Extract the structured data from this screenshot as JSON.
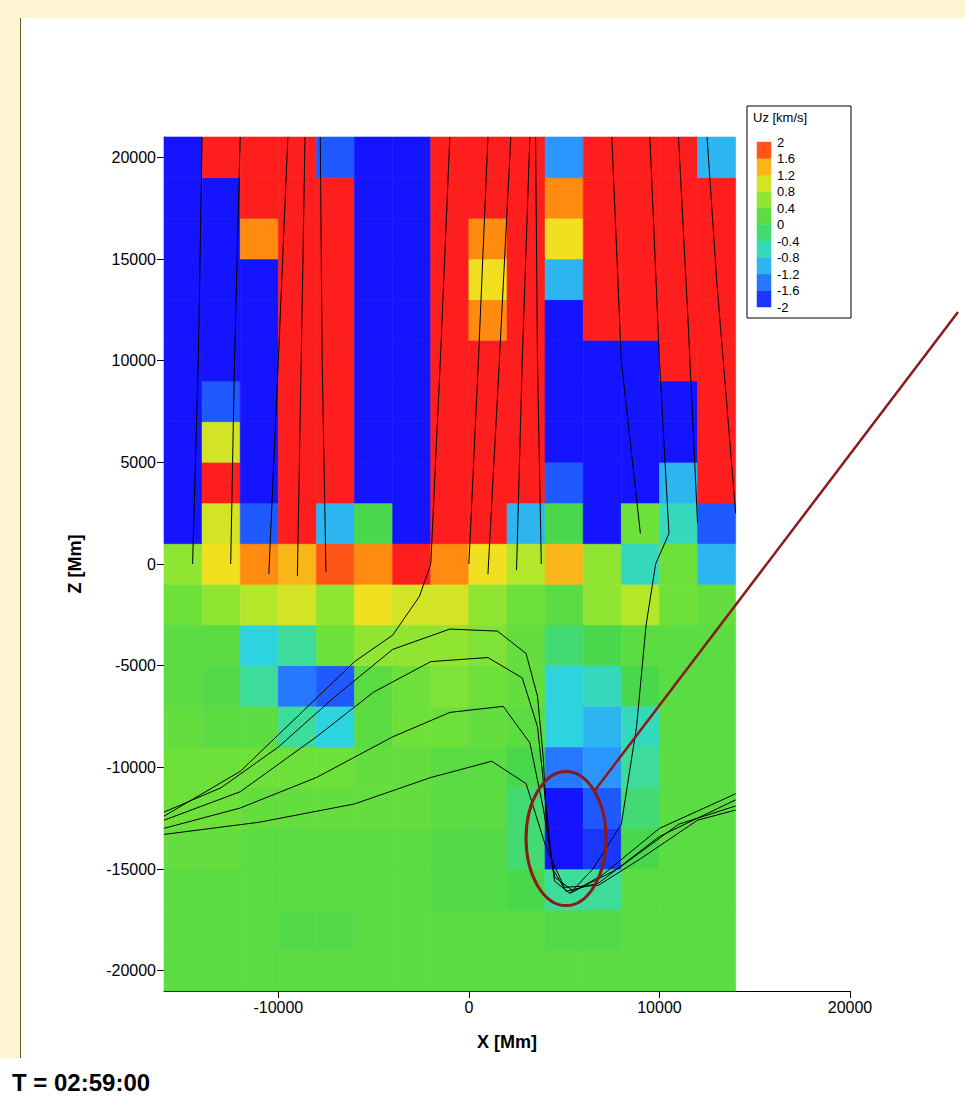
{
  "chart_data": {
    "type": "contour",
    "annotation": "T = 02:59:00",
    "x_label": "X [Mm]",
    "y_label": "Z [Mm]",
    "xlim": [
      -16000,
      20000
    ],
    "xticks": [
      -10000,
      0,
      10000,
      20000
    ],
    "ylim": [
      -21000,
      21000
    ],
    "yticks": [
      -20000,
      -15000,
      -10000,
      -5000,
      0,
      5000,
      10000,
      15000,
      20000
    ],
    "field": {
      "x_edges": [
        -16000,
        -14000,
        -12000,
        -10000,
        -8000,
        -6000,
        -4000,
        -2000,
        0,
        2000,
        4000,
        6000,
        8000,
        10000,
        12000,
        14000
      ],
      "z_edges": [
        -21000,
        -19000,
        -17000,
        -15000,
        -13000,
        -11000,
        -9000,
        -7000,
        -5000,
        -3000,
        -1000,
        1000,
        3000,
        5000,
        7000,
        9000,
        11000,
        13000,
        15000,
        17000,
        19000,
        21000
      ],
      "values": [
        [
          0.2,
          0.2,
          0.2,
          0.2,
          0.2,
          0.2,
          0.2,
          0.2,
          0.2,
          0.2,
          0.2,
          0.2,
          0.2,
          0.2,
          0.2
        ],
        [
          0.2,
          0.2,
          0.2,
          0.1,
          0.1,
          0.2,
          0.2,
          0.2,
          0.2,
          0.2,
          0.1,
          0.1,
          0.2,
          0.2,
          0.2
        ],
        [
          0.2,
          0.2,
          0.2,
          0.2,
          0.2,
          0.2,
          0.2,
          0.1,
          0.1,
          0,
          -0.4,
          -0.4,
          0.2,
          0.2,
          0.2
        ],
        [
          0.3,
          0.3,
          0.2,
          0.2,
          0.2,
          0.2,
          0.2,
          0.1,
          0.1,
          -0.2,
          -2,
          -1.8,
          0,
          0.2,
          0.2
        ],
        [
          0.4,
          0.4,
          0.3,
          0.3,
          0.3,
          0.3,
          0.3,
          0.2,
          0.2,
          -0.2,
          -2,
          -1.6,
          -0.2,
          0.2,
          0.2
        ],
        [
          0.4,
          0.4,
          0.4,
          0.4,
          0.4,
          0.3,
          0.3,
          0.2,
          0.2,
          0,
          -1.4,
          -1.2,
          -0.4,
          0.2,
          0.2
        ],
        [
          0.3,
          0.2,
          0.2,
          -0.4,
          -0.8,
          0.2,
          0.4,
          0.4,
          0.3,
          0.2,
          -0.8,
          -1,
          -0.6,
          0.2,
          0.2
        ],
        [
          0.2,
          0.1,
          -0.4,
          -1.4,
          -1.6,
          0.2,
          0.4,
          0.5,
          0.4,
          0.3,
          -0.8,
          -0.6,
          0,
          0.2,
          0.2
        ],
        [
          0.2,
          0.2,
          -0.8,
          -0.4,
          0.4,
          0.6,
          0.6,
          0.6,
          0.5,
          0.3,
          -0.2,
          0,
          0.2,
          0.2,
          0.2
        ],
        [
          0.4,
          0.6,
          0.8,
          1,
          0.6,
          1.2,
          1,
          1,
          0.6,
          0.4,
          0.2,
          0.6,
          0.8,
          0.4,
          0.3
        ],
        [
          0.6,
          1.2,
          1.6,
          1.4,
          1.8,
          1.6,
          2,
          1.6,
          1.2,
          0.8,
          1.4,
          0.6,
          -0.6,
          0.4,
          -1
        ],
        [
          -2,
          1,
          -1.6,
          2,
          -1,
          0,
          -2,
          2,
          2,
          -1,
          0,
          -2,
          0.4,
          -0.6,
          -1.6
        ],
        [
          -2,
          2,
          -2,
          2,
          2,
          -2,
          -2,
          2,
          2,
          2,
          -1.6,
          -2,
          -2,
          -1,
          2
        ],
        [
          -2,
          1,
          -2,
          2,
          2,
          -2,
          -2,
          2,
          2,
          2,
          -2,
          -2,
          -2,
          -2,
          2
        ],
        [
          -2,
          -1.6,
          -2,
          2,
          2,
          -2,
          -2,
          2,
          2,
          2,
          -2,
          -2,
          -2,
          -2,
          2
        ],
        [
          -2,
          -2,
          -2,
          2,
          2,
          -2,
          -2,
          2,
          2,
          2,
          -2,
          -2,
          -2,
          2,
          2
        ],
        [
          -2,
          -2,
          -2,
          2,
          2,
          -2,
          -2,
          2,
          1.6,
          2,
          -2,
          2,
          2,
          2,
          2
        ],
        [
          -2,
          -2,
          -2,
          2,
          2,
          -2,
          -2,
          2,
          1.2,
          2,
          -1,
          2,
          2,
          2,
          2
        ],
        [
          -2,
          -2,
          1.6,
          2,
          2,
          -2,
          -2,
          2,
          1.6,
          2,
          1.2,
          2,
          2,
          2,
          2
        ],
        [
          -2,
          -2,
          2,
          2,
          2,
          -2,
          -2,
          2,
          2,
          2,
          1.6,
          2,
          2,
          2,
          2
        ],
        [
          -2,
          2,
          2,
          2,
          -1.6,
          -2,
          -2,
          2,
          2,
          2,
          -1.2,
          2,
          2,
          2,
          -1
        ]
      ]
    },
    "colorbar": {
      "title": "Uz [km/s]",
      "range": [
        -2,
        2
      ],
      "ticks": [
        2,
        1.6,
        1.2,
        0.8,
        0.4,
        0,
        -0.4,
        -0.8,
        -1.2,
        -1.6,
        -2
      ]
    },
    "field_lines": [
      [
        [
          -16000,
          -12200
        ],
        [
          -13000,
          -11000
        ],
        [
          -10000,
          -9000
        ],
        [
          -7000,
          -6500
        ],
        [
          -4000,
          -4200
        ],
        [
          -1000,
          -3200
        ],
        [
          1500,
          -3300
        ],
        [
          3000,
          -4400
        ],
        [
          3600,
          -6500
        ],
        [
          3900,
          -9500
        ],
        [
          4100,
          -13000
        ],
        [
          4500,
          -15600
        ],
        [
          5300,
          -16200
        ],
        [
          7000,
          -15300
        ],
        [
          10000,
          -13000
        ],
        [
          14000,
          -11300
        ]
      ],
      [
        [
          -16000,
          -12600
        ],
        [
          -12000,
          -11200
        ],
        [
          -8000,
          -8500
        ],
        [
          -5000,
          -6300
        ],
        [
          -2000,
          -4800
        ],
        [
          1000,
          -4600
        ],
        [
          2800,
          -5600
        ],
        [
          3600,
          -8000
        ],
        [
          4000,
          -11500
        ],
        [
          4400,
          -15000
        ],
        [
          5100,
          -16100
        ],
        [
          6800,
          -15700
        ],
        [
          10000,
          -13400
        ],
        [
          14000,
          -11600
        ]
      ],
      [
        [
          -16000,
          -13000
        ],
        [
          -12000,
          -12000
        ],
        [
          -8000,
          -10500
        ],
        [
          -4000,
          -8500
        ],
        [
          -1000,
          -7300
        ],
        [
          1800,
          -7000
        ],
        [
          3200,
          -8800
        ],
        [
          3900,
          -12000
        ],
        [
          4500,
          -15400
        ],
        [
          5500,
          -16100
        ],
        [
          7800,
          -15000
        ],
        [
          11000,
          -12800
        ],
        [
          14000,
          -11900
        ]
      ],
      [
        [
          -16000,
          -13300
        ],
        [
          -11000,
          -12700
        ],
        [
          -6000,
          -11800
        ],
        [
          -2000,
          -10500
        ],
        [
          1200,
          -9700
        ],
        [
          3000,
          -10800
        ],
        [
          4000,
          -13800
        ],
        [
          5000,
          -15900
        ],
        [
          6800,
          -15800
        ],
        [
          9000,
          -14500
        ],
        [
          12000,
          -12600
        ],
        [
          14000,
          -12100
        ]
      ],
      [
        [
          -16000,
          -12400
        ],
        [
          -12000,
          -10200
        ],
        [
          -9000,
          -7500
        ],
        [
          -6000,
          -4800
        ],
        [
          -4000,
          -3500
        ],
        [
          -2600,
          -1600
        ],
        [
          -2000,
          0
        ],
        [
          -1500,
          10000
        ],
        [
          -1000,
          21000
        ]
      ],
      [
        [
          5300,
          -16200
        ],
        [
          6500,
          -15000
        ],
        [
          8000,
          -12800
        ],
        [
          8800,
          -8000
        ],
        [
          9300,
          -3000
        ],
        [
          9800,
          0
        ],
        [
          10500,
          1500
        ],
        [
          10000,
          10000
        ],
        [
          9500,
          21000
        ]
      ],
      [
        [
          -14500,
          0
        ],
        [
          -14200,
          10000
        ],
        [
          -14000,
          21000
        ]
      ],
      [
        [
          -12500,
          0
        ],
        [
          -12300,
          10000
        ],
        [
          -12000,
          21000
        ]
      ],
      [
        [
          -10500,
          -500
        ],
        [
          -10000,
          10000
        ],
        [
          -9500,
          21000
        ]
      ],
      [
        [
          -9000,
          -600
        ],
        [
          -8800,
          10000
        ],
        [
          -8600,
          21000
        ]
      ],
      [
        [
          -7500,
          -400
        ],
        [
          -7700,
          10000
        ],
        [
          -7800,
          21000
        ]
      ],
      [
        [
          0,
          0
        ],
        [
          500,
          10000
        ],
        [
          1000,
          21000
        ]
      ],
      [
        [
          1000,
          -500
        ],
        [
          1600,
          10000
        ],
        [
          2200,
          21000
        ]
      ],
      [
        [
          2500,
          -300
        ],
        [
          2800,
          10000
        ],
        [
          3200,
          21000
        ]
      ],
      [
        [
          3800,
          0
        ],
        [
          3600,
          10000
        ],
        [
          3500,
          21000
        ]
      ],
      [
        [
          9000,
          1500
        ],
        [
          8000,
          10000
        ],
        [
          7500,
          21000
        ]
      ],
      [
        [
          12000,
          2000
        ],
        [
          11500,
          12000
        ],
        [
          11000,
          21000
        ]
      ],
      [
        [
          14000,
          2500
        ],
        [
          13000,
          14000
        ],
        [
          12500,
          21000
        ]
      ]
    ],
    "highlight": {
      "x": [
        3000,
        7200
      ],
      "z": [
        -16800,
        -10200
      ]
    }
  }
}
